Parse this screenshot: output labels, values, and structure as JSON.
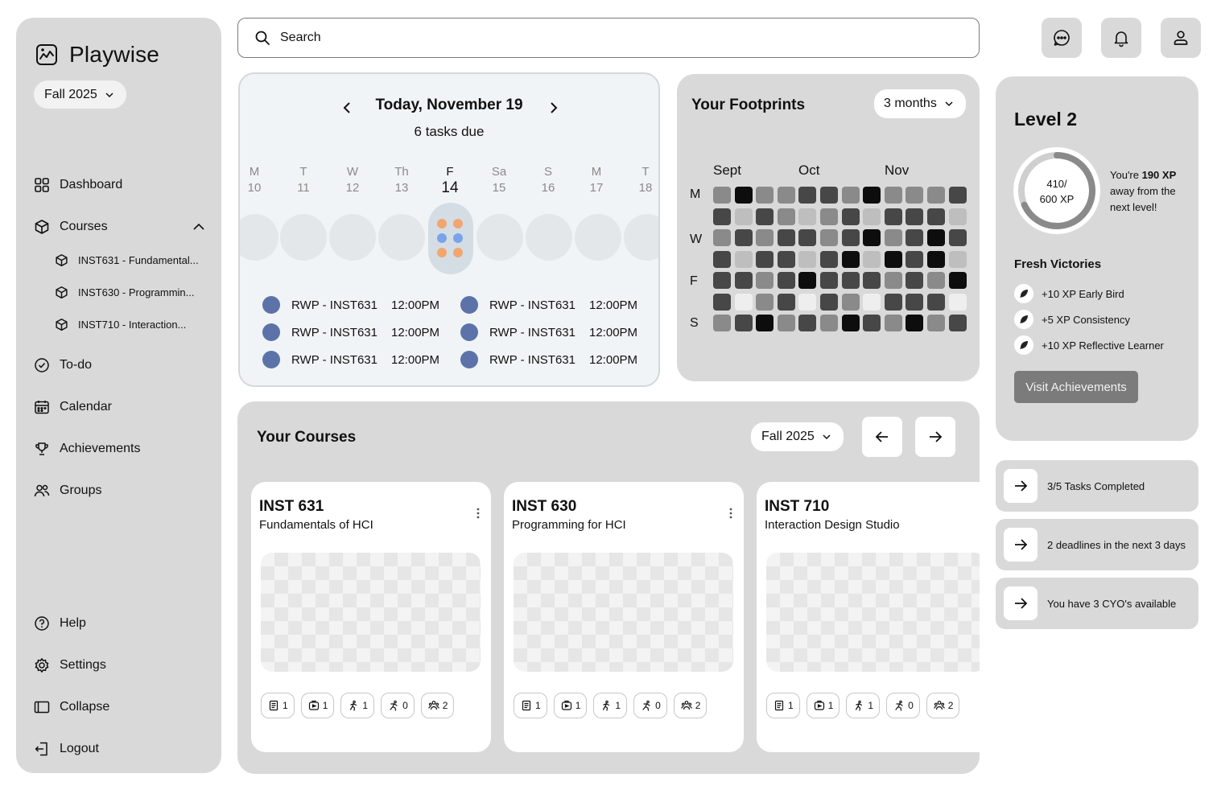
{
  "app": {
    "name": "Playwise",
    "term": "Fall 2025"
  },
  "sidebar": {
    "nav": [
      {
        "label": "Dashboard",
        "icon": "grid-icon"
      },
      {
        "label": "Courses",
        "icon": "cube-icon"
      },
      {
        "label": "To-do",
        "icon": "check-circle-icon"
      },
      {
        "label": "Calendar",
        "icon": "calendar-icon"
      },
      {
        "label": "Achievements",
        "icon": "trophy-icon"
      },
      {
        "label": "Groups",
        "icon": "users-icon"
      }
    ],
    "courses": [
      "INST631 - Fundamental...",
      "INST630 - Programmin...",
      "INST710 - Interaction..."
    ],
    "bottom": [
      {
        "label": "Help",
        "icon": "help-icon"
      },
      {
        "label": "Settings",
        "icon": "gear-icon"
      },
      {
        "label": "Collapse",
        "icon": "collapse-icon"
      },
      {
        "label": "Logout",
        "icon": "logout-icon"
      }
    ]
  },
  "search": {
    "placeholder": "Search"
  },
  "calendar": {
    "title": "Today, November 19",
    "subtitle": "6 tasks due",
    "days": [
      {
        "d": "M",
        "n": "10"
      },
      {
        "d": "T",
        "n": "11"
      },
      {
        "d": "W",
        "n": "12"
      },
      {
        "d": "Th",
        "n": "13"
      },
      {
        "d": "F",
        "n": "14",
        "active": true
      },
      {
        "d": "Sa",
        "n": "15"
      },
      {
        "d": "S",
        "n": "16"
      },
      {
        "d": "M",
        "n": "17"
      },
      {
        "d": "T",
        "n": "18"
      }
    ],
    "tasks": [
      {
        "code": "RWP  - INST631",
        "time": "12:00PM"
      },
      {
        "code": "RWP  - INST631",
        "time": "12:00PM"
      },
      {
        "code": "RWP  - INST631",
        "time": "12:00PM"
      },
      {
        "code": "RWP  - INST631",
        "time": "12:00PM"
      },
      {
        "code": "RWP  - INST631",
        "time": "12:00PM"
      },
      {
        "code": "RWP  - INST631",
        "time": "12:00PM"
      }
    ],
    "colors": {
      "task_dot": "#5b73a8",
      "dot_orange": "#f2a66f",
      "dot_blue": "#7ba3ea"
    }
  },
  "footprints": {
    "title": "Your Footprints",
    "range": "3 months",
    "months": [
      "Sept",
      "Oct",
      "Nov"
    ],
    "weekdays": [
      "M",
      "",
      "W",
      "",
      "F",
      "",
      "S"
    ],
    "levels": [
      [
        2,
        4,
        2,
        2,
        3,
        3,
        2,
        4,
        2,
        2,
        2,
        3
      ],
      [
        3,
        1,
        3,
        2,
        1,
        2,
        3,
        1,
        3,
        3,
        3,
        1
      ],
      [
        2,
        3,
        2,
        3,
        3,
        2,
        3,
        4,
        2,
        3,
        4,
        3
      ],
      [
        3,
        1,
        3,
        3,
        1,
        3,
        4,
        1,
        4,
        3,
        4,
        1
      ],
      [
        3,
        3,
        2,
        3,
        4,
        3,
        3,
        3,
        2,
        3,
        2,
        4
      ],
      [
        3,
        0,
        2,
        3,
        0,
        3,
        2,
        0,
        3,
        3,
        3,
        0
      ],
      [
        2,
        3,
        4,
        2,
        3,
        2,
        4,
        3,
        2,
        4,
        2,
        3
      ]
    ],
    "palette": [
      "#eeeeee",
      "#bebebe",
      "#8a8a8a",
      "#474747",
      "#0d0d0d"
    ]
  },
  "level": {
    "title": "Level 2",
    "xp_current": "410/",
    "xp_total": "600 XP",
    "progress": 0.683,
    "away_text": [
      "You're ",
      "190 XP",
      " away from the next level!"
    ],
    "victories_title": "Fresh Victories",
    "victories": [
      "+10 XP Early Bird",
      "+5 XP Consistency",
      "+10 XP Reflective Learner"
    ],
    "cta": "Visit Achievements"
  },
  "notices": [
    "3/5 Tasks Completed",
    "2 deadlines in the next 3 days",
    "You have 3 CYO's available"
  ],
  "courses": {
    "title": "Your Courses",
    "term": "Fall 2025",
    "cards": [
      {
        "code": "INST 631",
        "name": "Fundamentals of HCI",
        "badges": [
          "1",
          "1",
          "1",
          "0",
          "2"
        ]
      },
      {
        "code": "INST 630",
        "name": "Programming for HCI",
        "badges": [
          "1",
          "1",
          "1",
          "0",
          "2"
        ]
      },
      {
        "code": "INST 710",
        "name": "Interaction Design Studio",
        "badges": [
          "1",
          "1",
          "1",
          "0",
          "2"
        ]
      }
    ]
  }
}
